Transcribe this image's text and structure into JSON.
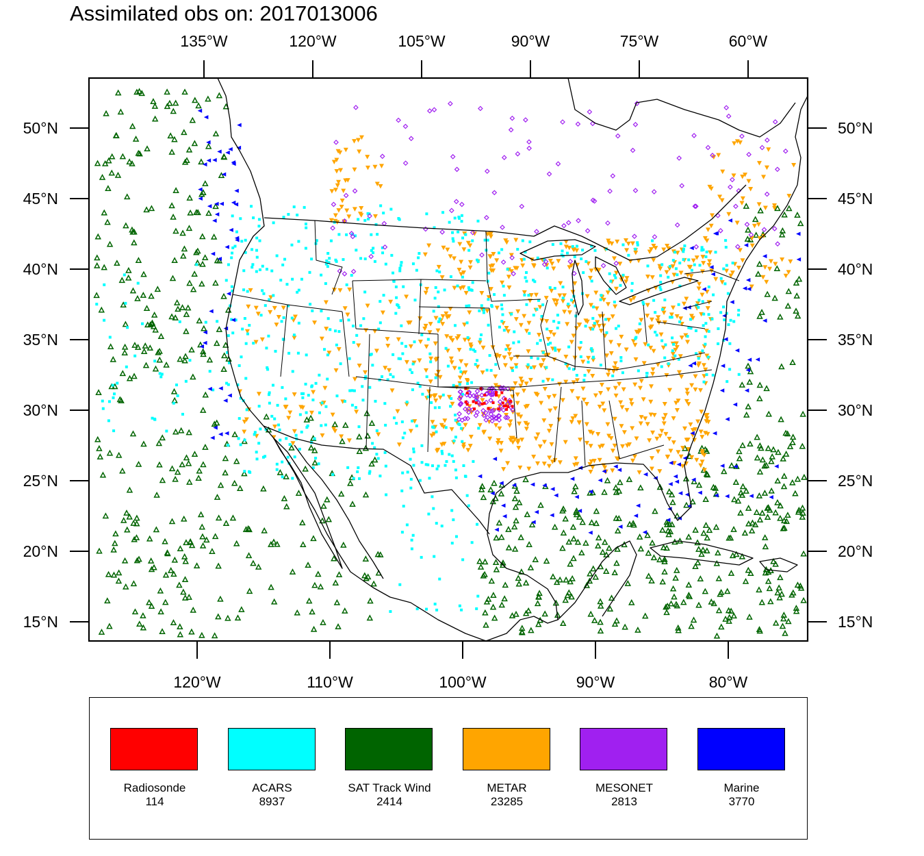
{
  "title": "Assimilated obs on: 2017013006",
  "axes": {
    "top_lon_ticks": [
      {
        "value": -135,
        "label": "135°W"
      },
      {
        "value": -120,
        "label": "120°W"
      },
      {
        "value": -105,
        "label": "105°W"
      },
      {
        "value": -90,
        "label": "90°W"
      },
      {
        "value": -75,
        "label": "75°W"
      },
      {
        "value": -60,
        "label": "60°W"
      }
    ],
    "bottom_lon_ticks": [
      {
        "value": -120,
        "label": "120°W"
      },
      {
        "value": -110,
        "label": "110°W"
      },
      {
        "value": -100,
        "label": "100°W"
      },
      {
        "value": -90,
        "label": "90°W"
      },
      {
        "value": -80,
        "label": "80°W"
      }
    ],
    "lat_ticks": [
      {
        "value": 50,
        "label": "50°N"
      },
      {
        "value": 45,
        "label": "45°N"
      },
      {
        "value": 40,
        "label": "40°N"
      },
      {
        "value": 35,
        "label": "35°N"
      },
      {
        "value": 30,
        "label": "30°N"
      },
      {
        "value": 25,
        "label": "25°N"
      },
      {
        "value": 20,
        "label": "20°N"
      },
      {
        "value": 15,
        "label": "15°N"
      }
    ]
  },
  "legend": [
    {
      "name": "Radiosonde",
      "count": "114",
      "color": "#ff0000",
      "marker": "filled-square"
    },
    {
      "name": "ACARS",
      "count": "8937",
      "color": "#00ffff",
      "marker": "filled-square"
    },
    {
      "name": "SAT Track Wind",
      "count": "2414",
      "color": "#006400",
      "marker": "hollow-triangle-up"
    },
    {
      "name": "METAR",
      "count": "23285",
      "color": "#ffa500",
      "marker": "filled-triangle-down"
    },
    {
      "name": "MESONET",
      "count": "2813",
      "color": "#a020f0",
      "marker": "hollow-diamond"
    },
    {
      "name": "Marine",
      "count": "3770",
      "color": "#0000ff",
      "marker": "filled-triangle-left"
    }
  ]
}
